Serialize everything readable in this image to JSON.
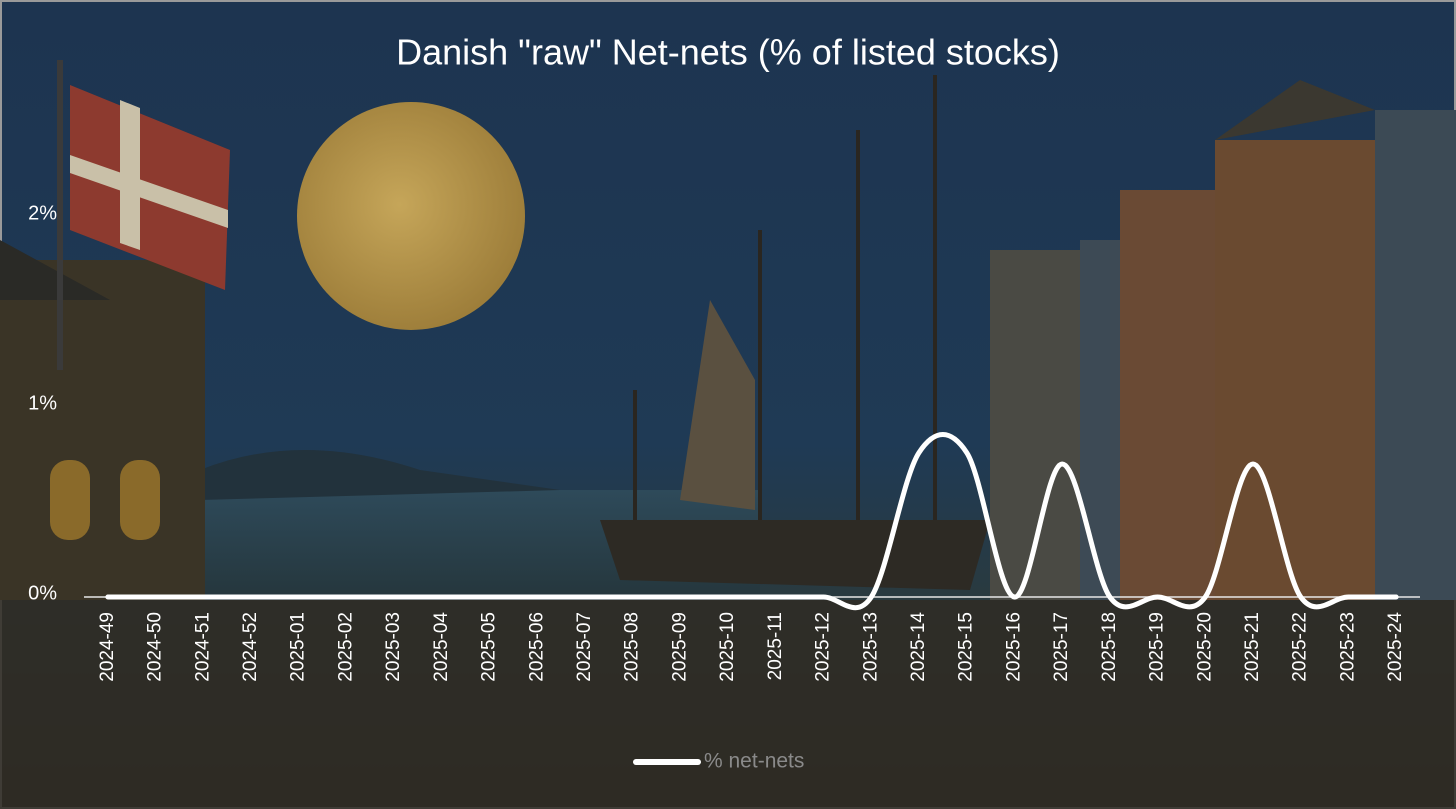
{
  "chart_data": {
    "type": "line",
    "title": "Danish \"raw\" Net-nets (% of listed stocks)",
    "categories": [
      "2024-49",
      "2024-50",
      "2024-51",
      "2024-52",
      "2025-01",
      "2025-02",
      "2025-03",
      "2025-04",
      "2025-05",
      "2025-06",
      "2025-07",
      "2025-08",
      "2025-09",
      "2025-10",
      "2025-11",
      "2025-12",
      "2025-13",
      "2025-14",
      "2025-15",
      "2025-16",
      "2025-17",
      "2025-18",
      "2025-19",
      "2025-20",
      "2025-21",
      "2025-22",
      "2025-23",
      "2025-24"
    ],
    "series": [
      {
        "name": "% net-nets",
        "color": "#ffffff",
        "values": [
          0,
          0,
          0,
          0,
          0,
          0,
          0,
          0,
          0,
          0,
          0,
          0,
          0,
          0,
          0,
          0,
          0,
          0.76,
          0.76,
          0,
          0.7,
          0,
          0,
          0,
          0.7,
          0,
          0,
          0
        ]
      }
    ],
    "ylim": [
      0,
      2.5
    ],
    "yticks": [
      {
        "value": 0,
        "label": "0%"
      },
      {
        "value": 1,
        "label": "1%"
      },
      {
        "value": 2,
        "label": "2%"
      }
    ],
    "legend": "bottom",
    "smooth": true
  }
}
